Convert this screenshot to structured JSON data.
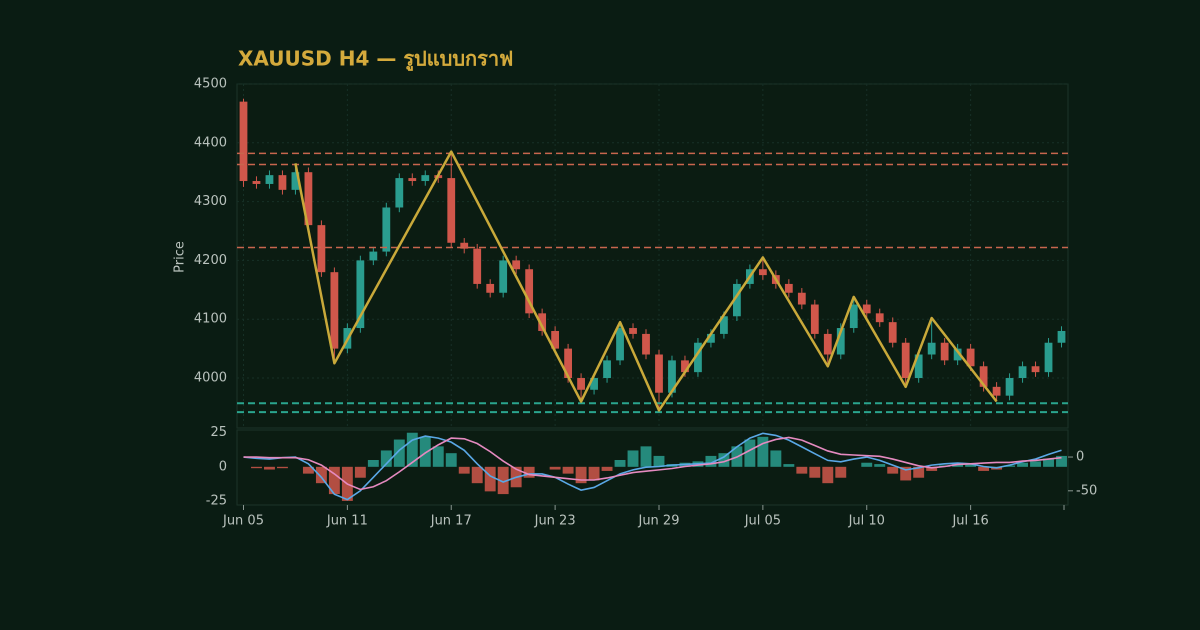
{
  "chart_data": [
    {
      "type": "candlestick",
      "title": "XAUUSD H4 — รูปแบบกราฟ",
      "ylabel": "Price",
      "categories": [
        "Jun 05",
        null,
        null,
        null,
        null,
        null,
        null,
        null,
        "Jun 11",
        null,
        null,
        null,
        null,
        null,
        null,
        null,
        "Jun 17",
        null,
        null,
        null,
        null,
        null,
        null,
        null,
        "Jun 23",
        null,
        null,
        null,
        null,
        null,
        null,
        null,
        "Jun 29",
        null,
        null,
        null,
        null,
        null,
        null,
        null,
        "Jul 05",
        null,
        null,
        null,
        null,
        null,
        null,
        null,
        "Jul 10",
        null,
        null,
        null,
        null,
        null,
        null,
        null,
        "Jul 16",
        null,
        null,
        null,
        null,
        null,
        null,
        null
      ],
      "open": [
        4470,
        4335,
        4330,
        4345,
        4320,
        4350,
        4260,
        4180,
        4050,
        4085,
        4200,
        4215,
        4290,
        4340,
        4335,
        4345,
        4340,
        4230,
        4220,
        4160,
        4145,
        4200,
        4185,
        4110,
        4080,
        4050,
        4000,
        3980,
        4000,
        4030,
        4085,
        4075,
        4040,
        3975,
        4030,
        4010,
        4060,
        4075,
        4105,
        4160,
        4185,
        4175,
        4160,
        4145,
        4125,
        4075,
        4040,
        4085,
        4125,
        4110,
        4095,
        4060,
        4000,
        4040,
        4060,
        4030,
        4050,
        4020,
        3985,
        3970,
        4000,
        4020,
        4010,
        4060
      ],
      "high": [
        4475,
        4343,
        4353,
        4353,
        4365,
        4358,
        4268,
        4188,
        4093,
        4208,
        4223,
        4298,
        4348,
        4348,
        4353,
        4353,
        4385,
        4238,
        4228,
        4168,
        4208,
        4208,
        4193,
        4118,
        4088,
        4058,
        4008,
        4008,
        4038,
        4095,
        4093,
        4083,
        4048,
        4038,
        4038,
        4068,
        4083,
        4113,
        4168,
        4193,
        4205,
        4183,
        4168,
        4153,
        4133,
        4083,
        4093,
        4138,
        4133,
        4118,
        4103,
        4068,
        4048,
        4102,
        4068,
        4058,
        4058,
        4028,
        3993,
        4008,
        4028,
        4028,
        4068,
        4088
      ],
      "low": [
        4325,
        4322,
        4322,
        4312,
        4312,
        4252,
        4172,
        4025,
        4042,
        4077,
        4192,
        4207,
        4282,
        4327,
        4327,
        4332,
        4222,
        4212,
        4152,
        4137,
        4137,
        4177,
        4102,
        4072,
        4042,
        3992,
        3960,
        3972,
        3992,
        4022,
        4067,
        4032,
        3945,
        3967,
        4002,
        4002,
        4052,
        4067,
        4097,
        4152,
        4167,
        4152,
        4137,
        4117,
        4067,
        4020,
        4032,
        4077,
        4102,
        4087,
        4052,
        3985,
        3992,
        4032,
        4022,
        4022,
        4012,
        3977,
        3960,
        3962,
        3992,
        4002,
        4002,
        4052
      ],
      "close": [
        4335,
        4330,
        4345,
        4320,
        4350,
        4260,
        4180,
        4050,
        4085,
        4200,
        4215,
        4290,
        4340,
        4335,
        4345,
        4340,
        4230,
        4220,
        4160,
        4145,
        4200,
        4185,
        4110,
        4080,
        4050,
        4000,
        3980,
        4000,
        4030,
        4085,
        4075,
        4040,
        3975,
        4030,
        4010,
        4060,
        4075,
        4105,
        4160,
        4185,
        4175,
        4160,
        4145,
        4125,
        4075,
        4040,
        4085,
        4125,
        4110,
        4095,
        4060,
        4000,
        4040,
        4060,
        4030,
        4050,
        4020,
        3985,
        3970,
        4000,
        4020,
        4010,
        4060,
        4080
      ],
      "up_color": "#2a9d8f",
      "down_color": "#d0574b",
      "ylim": [
        3915,
        4500
      ],
      "yticks": [
        4000,
        4100,
        4200,
        4300,
        4400,
        4500
      ],
      "grid": true,
      "resistance": {
        "values": [
          4382,
          4363,
          4222
        ],
        "color": "#c8664e"
      },
      "support": {
        "values": [
          3957,
          3942
        ],
        "color": "#2aa58e"
      },
      "zigzag": {
        "indices": [
          4,
          7,
          16,
          26,
          29,
          32,
          40,
          45,
          47,
          51,
          53,
          58
        ],
        "values": [
          4365,
          4025,
          4385,
          3960,
          4095,
          3945,
          4205,
          4020,
          4138,
          3985,
          4102,
          3960
        ],
        "color": "#c9a93a"
      }
    },
    {
      "type": "macd",
      "ylim": [
        -28,
        27
      ],
      "yticks": [
        -25,
        0,
        25
      ],
      "y2lim": [
        -71,
        40
      ],
      "y2ticks": [
        -50,
        0
      ],
      "histogram": {
        "values": [
          0,
          -1,
          -2,
          -1,
          0,
          -5,
          -12,
          -20,
          -25,
          -8,
          5,
          12,
          20,
          25,
          22,
          15,
          10,
          -5,
          -12,
          -18,
          -20,
          -15,
          -8,
          0,
          -2,
          -5,
          -12,
          -10,
          -3,
          5,
          12,
          15,
          8,
          2,
          3,
          4,
          8,
          10,
          15,
          20,
          22,
          12,
          2,
          -5,
          -8,
          -12,
          -8,
          0,
          3,
          2,
          -5,
          -10,
          -8,
          -3,
          1,
          3,
          2,
          -3,
          -2,
          1,
          3,
          4,
          6,
          8
        ],
        "up_color": "#2a9d8f",
        "down_color": "#d0574b"
      },
      "series": [
        {
          "color": "#5aa8e6",
          "axis": "y2",
          "values": [
            0,
            -2,
            -3,
            -1,
            0,
            -10,
            -30,
            -55,
            -63,
            -50,
            -30,
            -10,
            10,
            25,
            31,
            28,
            22,
            10,
            -10,
            -28,
            -37,
            -30,
            -25,
            -25,
            -30,
            -40,
            -49,
            -45,
            -35,
            -25,
            -19,
            -15,
            -14,
            -12,
            -11,
            -10,
            -9,
            0,
            15,
            28,
            35,
            32,
            25,
            15,
            5,
            -5,
            -7,
            -3,
            0,
            -5,
            -12,
            -19,
            -16,
            -12,
            -10,
            -9,
            -10,
            -14,
            -16,
            -12,
            -7,
            -3,
            4,
            10
          ]
        },
        {
          "color": "#e58ac0",
          "axis": "y2",
          "values": [
            0,
            0,
            -1,
            -1,
            -1,
            -4,
            -12,
            -25,
            -40,
            -48,
            -44,
            -35,
            -22,
            -8,
            6,
            18,
            28,
            27,
            20,
            8,
            -6,
            -18,
            -26,
            -28,
            -30,
            -32,
            -34,
            -34,
            -31,
            -27,
            -23,
            -21,
            -19,
            -17,
            -14,
            -12,
            -10,
            -7,
            0,
            10,
            20,
            26,
            29,
            25,
            17,
            9,
            4,
            3,
            2,
            1,
            -3,
            -8,
            -13,
            -16,
            -14,
            -11,
            -10,
            -9,
            -8,
            -8,
            -6,
            -5,
            -3,
            -1
          ]
        }
      ]
    }
  ]
}
